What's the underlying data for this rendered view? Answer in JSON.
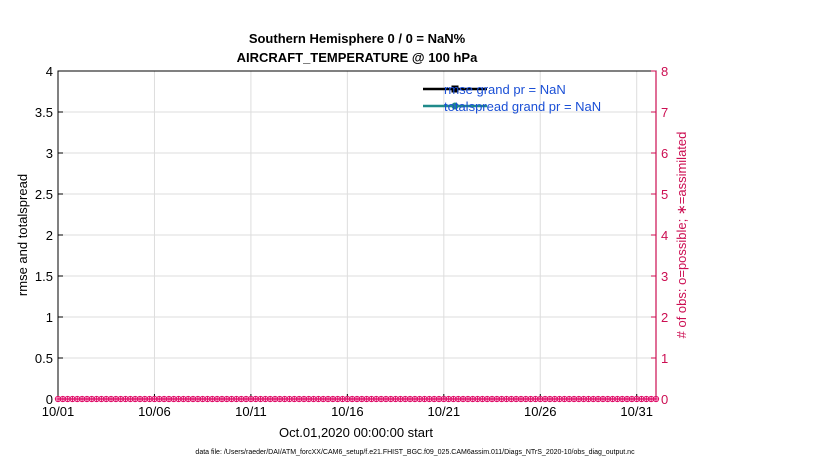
{
  "chart_data": {
    "type": "line",
    "title_lines": [
      "Southern Hemisphere 0 / 0 = NaN%",
      "AIRCRAFT_TEMPERATURE @ 100 hPa"
    ],
    "xlabel": "Oct.01,2020 00:00:00 start",
    "ylabel": "rmse and totalspread",
    "ylabel_right": "# of obs: o=possible; ∗=assimilated",
    "x_ticks": [
      "10/01",
      "10/06",
      "10/11",
      "10/16",
      "10/21",
      "10/26",
      "10/31"
    ],
    "x_tick_days": [
      0,
      5,
      10,
      15,
      20,
      25,
      30
    ],
    "x_range_days": [
      0,
      31
    ],
    "y_ticks": [
      "0",
      "0.5",
      "1",
      "1.5",
      "2",
      "2.5",
      "3",
      "3.5",
      "4"
    ],
    "ylim": [
      0,
      4
    ],
    "y_ticks_right": [
      "0",
      "1",
      "2",
      "3",
      "4",
      "5",
      "6",
      "7",
      "8"
    ],
    "ylim_right": [
      0,
      8
    ],
    "grid": true,
    "legend_position": "top-right",
    "series": [
      {
        "name": "rmse grand pr = NaN",
        "color": "#000000",
        "marker": "square"
      },
      {
        "name": "totalspread grand pr = NaN",
        "color": "#1f8a8a",
        "marker": "circle"
      }
    ],
    "obs_counts": {
      "x_step_days": 0.25,
      "possible": 0,
      "assimilated": 0,
      "color": "#e0106a"
    },
    "colors": {
      "right_axis": "#cc0e52",
      "legend_text": "#1a4fd6",
      "grid": "#dddddd"
    }
  },
  "footer": "data file: /Users/raeder/DAI/ATM_forcXX/CAM6_setup/f.e21.FHIST_BGC.f09_025.CAM6assim.011/Diags_NTrS_2020-10/obs_diag_output.nc"
}
